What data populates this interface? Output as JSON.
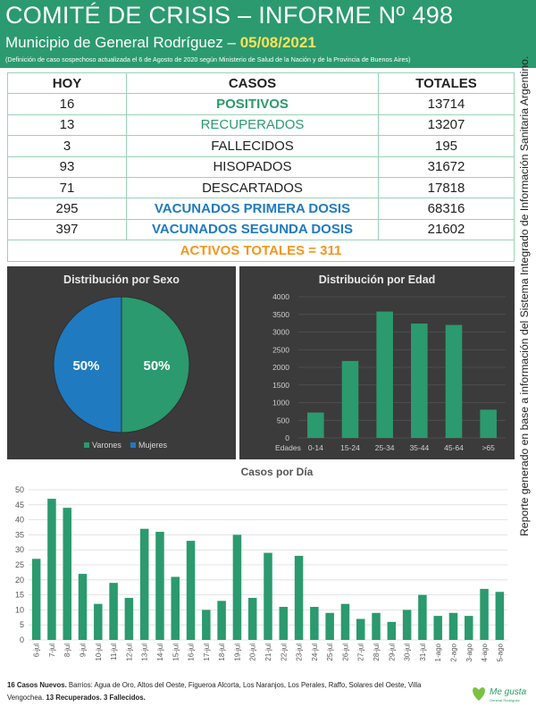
{
  "header": {
    "title": "COMITÉ DE CRISIS – INFORME Nº 498",
    "subtitle_prefix": "Municipio de General Rodríguez – ",
    "date": "05/08/2021",
    "note": "(Definición de caso sospechoso actualizada el 6 de Agosto de 2020 según Ministerio de Salud de la Nación y de la Provincia de Buenos Aires)"
  },
  "table": {
    "headers": [
      "HOY",
      "CASOS",
      "TOTALES"
    ],
    "rows": [
      {
        "hoy": "16",
        "casos": "POSITIVOS",
        "totales": "13714"
      },
      {
        "hoy": "13",
        "casos": "RECUPERADOS",
        "totales": "13207"
      },
      {
        "hoy": "3",
        "casos": "FALLECIDOS",
        "totales": "195"
      },
      {
        "hoy": "93",
        "casos": "HISOPADOS",
        "totales": "31672"
      },
      {
        "hoy": "71",
        "casos": "DESCARTADOS",
        "totales": "17818"
      },
      {
        "hoy": "295",
        "casos": "VACUNADOS PRIMERA DOSIS",
        "totales": "68316"
      },
      {
        "hoy": "397",
        "casos": "VACUNADOS SEGUNDA DOSIS",
        "totales": "21602"
      }
    ],
    "activos": "ACTIVOS TOTALES = 311"
  },
  "side_note": "Reporte generado en base a información del Sistema Integrado de Información Sanitaria Argentino.",
  "colors": {
    "brand_green": "#2b9a6e",
    "bar_green": "#2b9a6e",
    "blue": "#1f7ac0",
    "orange": "#f3961f",
    "panel_bg": "#3b3b3b"
  },
  "chart_data": [
    {
      "type": "pie",
      "title": "Distribución por Sexo",
      "categories": [
        "Varones",
        "Mujeres"
      ],
      "values": [
        50,
        50
      ],
      "data_labels": [
        "50%",
        "50%"
      ],
      "colors": [
        "#2b9a6e",
        "#1f7ac0"
      ],
      "legend": "bottom"
    },
    {
      "type": "bar",
      "title": "Distribución por Edad",
      "xlabel": "Edades",
      "categories": [
        "0-14",
        "15-24",
        "25-34",
        "35-44",
        "45-64",
        ">65"
      ],
      "values": [
        720,
        2180,
        3580,
        3240,
        3200,
        800
      ],
      "ylim": [
        0,
        4000
      ],
      "yticks": [
        0,
        500,
        1000,
        1500,
        2000,
        2500,
        3000,
        3500,
        4000
      ],
      "grid": true
    },
    {
      "type": "bar",
      "title": "Casos por Día",
      "categories": [
        "6-jul",
        "7-jul",
        "8-jul",
        "9-jul",
        "10-jul",
        "11-jul",
        "12-jul",
        "13-jul",
        "14-jul",
        "15-jul",
        "16-jul",
        "17-jul",
        "18-jul",
        "19-jul",
        "20-jul",
        "21-jul",
        "22-jul",
        "23-jul",
        "24-jul",
        "25-jul",
        "26-jul",
        "27-jul",
        "28-jul",
        "29-jul",
        "30-jul",
        "31-jul",
        "1-ago",
        "2-ago",
        "3-ago",
        "4-ago",
        "5-ago"
      ],
      "values": [
        27,
        47,
        44,
        22,
        12,
        19,
        14,
        37,
        36,
        21,
        33,
        10,
        13,
        35,
        14,
        29,
        11,
        28,
        11,
        9,
        12,
        7,
        9,
        6,
        10,
        15,
        8,
        9,
        8,
        17,
        16
      ],
      "ylim": [
        0,
        50
      ],
      "yticks": [
        0,
        5,
        10,
        15,
        20,
        25,
        30,
        35,
        40,
        45,
        50
      ],
      "grid": true
    }
  ],
  "footer": {
    "bold1": "16 Casos Nuevos.",
    "text1": " Barrios: Agua de Oro, Altos del Oeste, Figueroa Alcorta, Los Naranjos, Los Perales, Raffo, Solares del Oeste, Villa Vengochea. ",
    "bold2": "13 Recuperados.",
    "text2": " ",
    "bold3": "3 Fallecidos."
  },
  "logo": {
    "text1": "Me gusta",
    "text2": "General Rodríguez"
  }
}
